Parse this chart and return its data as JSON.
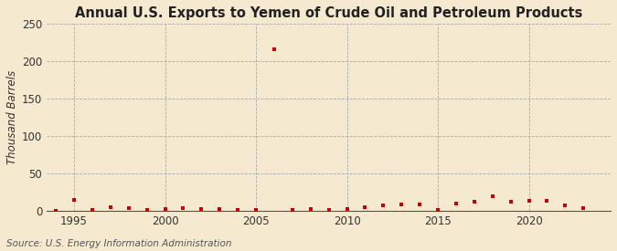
{
  "title": "Annual U.S. Exports to Yemen of Crude Oil and Petroleum Products",
  "ylabel": "Thousand Barrels",
  "source": "Source: U.S. Energy Information Administration",
  "years": [
    1994,
    1995,
    1996,
    1997,
    1998,
    1999,
    2000,
    2001,
    2002,
    2003,
    2004,
    2005,
    2006,
    2007,
    2008,
    2009,
    2010,
    2011,
    2012,
    2013,
    2014,
    2015,
    2016,
    2017,
    2018,
    2019,
    2020,
    2021,
    2022,
    2023
  ],
  "values": [
    0,
    14,
    1,
    5,
    3,
    1,
    2,
    3,
    2,
    2,
    1,
    1,
    216,
    1,
    2,
    1,
    2,
    5,
    7,
    8,
    8,
    1,
    10,
    12,
    20,
    12,
    13,
    13,
    7,
    4
  ],
  "marker_color": "#cc0000",
  "background_color": "#f5ead0",
  "ylim": [
    0,
    250
  ],
  "yticks": [
    0,
    50,
    100,
    150,
    200,
    250
  ],
  "xticks": [
    1995,
    2000,
    2005,
    2010,
    2015,
    2020
  ],
  "xlim": [
    1993.5,
    2024.5
  ],
  "grid_color": "#aaaaaa",
  "title_fontsize": 10.5,
  "axis_fontsize": 8.5,
  "source_fontsize": 7.5,
  "marker_size": 12
}
